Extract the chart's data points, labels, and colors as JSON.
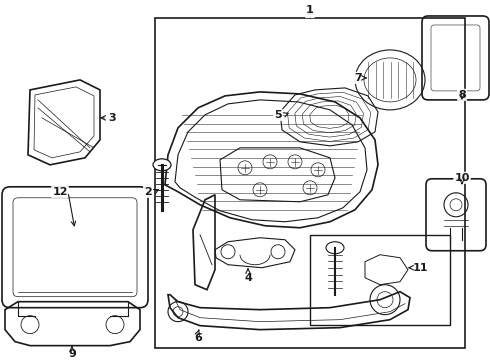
{
  "background_color": "#ffffff",
  "line_color": "#1a1a1a",
  "fig_width": 4.9,
  "fig_height": 3.6,
  "dpi": 100
}
